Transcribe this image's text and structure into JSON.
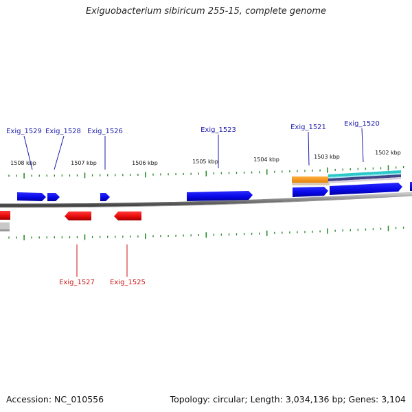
{
  "title": "Exiguobacterium sibiricum 255-15, complete genome",
  "footer": {
    "accession": "Accession: NC_010556",
    "summary": "Topology: circular; Length: 3,034,136 bp; Genes: 3,104"
  },
  "colors": {
    "forward_gene": "#0a0af0",
    "reverse_gene": "#ee1111",
    "forward_label": "#1a1aaa",
    "reverse_label": "#cc1111",
    "tick": "#2a8a2a",
    "backbone": "#8a8a8a",
    "orange_feature": "#f08a00",
    "teal_feature": "#2ac8c8"
  },
  "scale": {
    "unit": "kbp",
    "labels": [
      "1508 kbp",
      "1507 kbp",
      "1506 kbp",
      "1505 kbp",
      "1504 kbp",
      "1503 kbp",
      "1502 kbp"
    ]
  },
  "forward_gene_labels": [
    "Exig_1529",
    "Exig_1528",
    "Exig_1526",
    "Exig_1523",
    "Exig_1521",
    "Exig_1520"
  ],
  "reverse_gene_labels": [
    "Exig_1527",
    "Exig_1525"
  ]
}
